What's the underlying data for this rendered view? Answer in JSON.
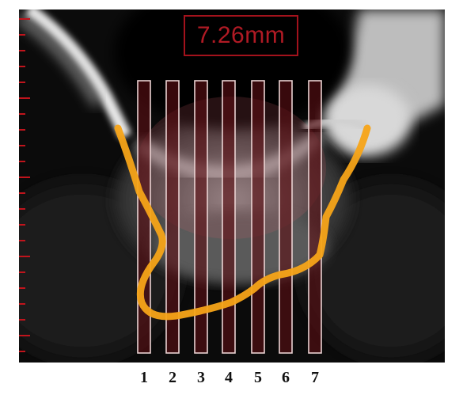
{
  "measurement": {
    "value_text": "7.26mm"
  },
  "columns": [
    {
      "label": "1"
    },
    {
      "label": "2"
    },
    {
      "label": "3"
    },
    {
      "label": "4"
    },
    {
      "label": "5"
    },
    {
      "label": "6"
    },
    {
      "label": "7"
    }
  ],
  "colors": {
    "measurement_box": "#a3121c",
    "column_fill": "#5a0f14",
    "column_border": "#ead2d2",
    "outline_curve": "#f7a418",
    "scale_ticks": "#c0141c"
  }
}
